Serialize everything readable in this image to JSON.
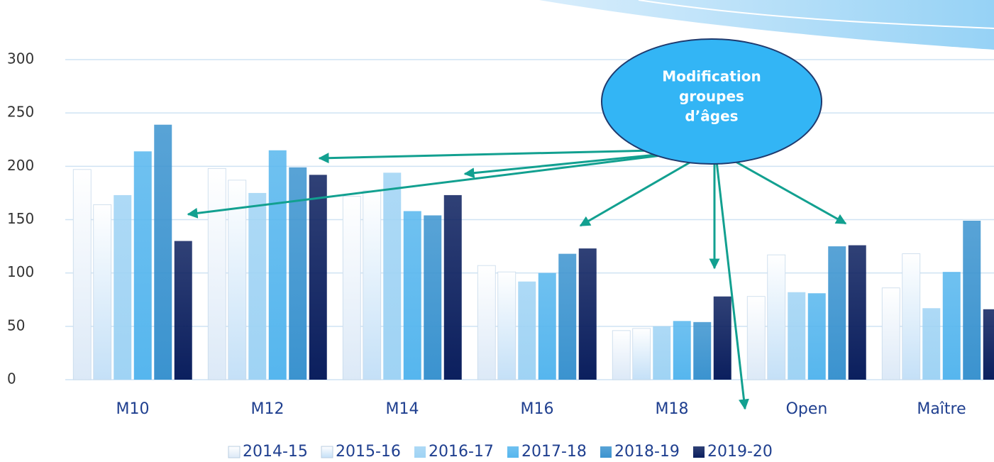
{
  "chart_data": {
    "type": "bar",
    "categories": [
      "M10",
      "M12",
      "M14",
      "M16",
      "M18",
      "Open",
      "Maître"
    ],
    "series": [
      {
        "name": "2014-15",
        "color": "#dce9f7",
        "values": [
          197,
          198,
          172,
          107,
          46,
          78,
          86
        ]
      },
      {
        "name": "2015-16",
        "color": "#c4e0f7",
        "values": [
          164,
          187,
          177,
          101,
          48,
          117,
          118
        ]
      },
      {
        "name": "2016-17",
        "color": "#9fd3f4",
        "values": [
          173,
          175,
          194,
          92,
          50,
          82,
          67
        ]
      },
      {
        "name": "2017-18",
        "color": "#56b6ee",
        "values": [
          214,
          215,
          158,
          100,
          55,
          81,
          101
        ]
      },
      {
        "name": "2018-19",
        "color": "#3b93cf",
        "values": [
          239,
          199,
          154,
          118,
          54,
          125,
          149
        ]
      },
      {
        "name": "2019-20",
        "color": "#0b1f5e",
        "values": [
          130,
          192,
          173,
          123,
          78,
          126,
          66
        ]
      }
    ],
    "ylim": [
      0,
      300
    ],
    "yticks": [
      0,
      50,
      100,
      150,
      200,
      250,
      300
    ],
    "grid": true,
    "legend": "bottom",
    "annotation": [
      "Modification",
      "groupes",
      "d’âges"
    ]
  }
}
